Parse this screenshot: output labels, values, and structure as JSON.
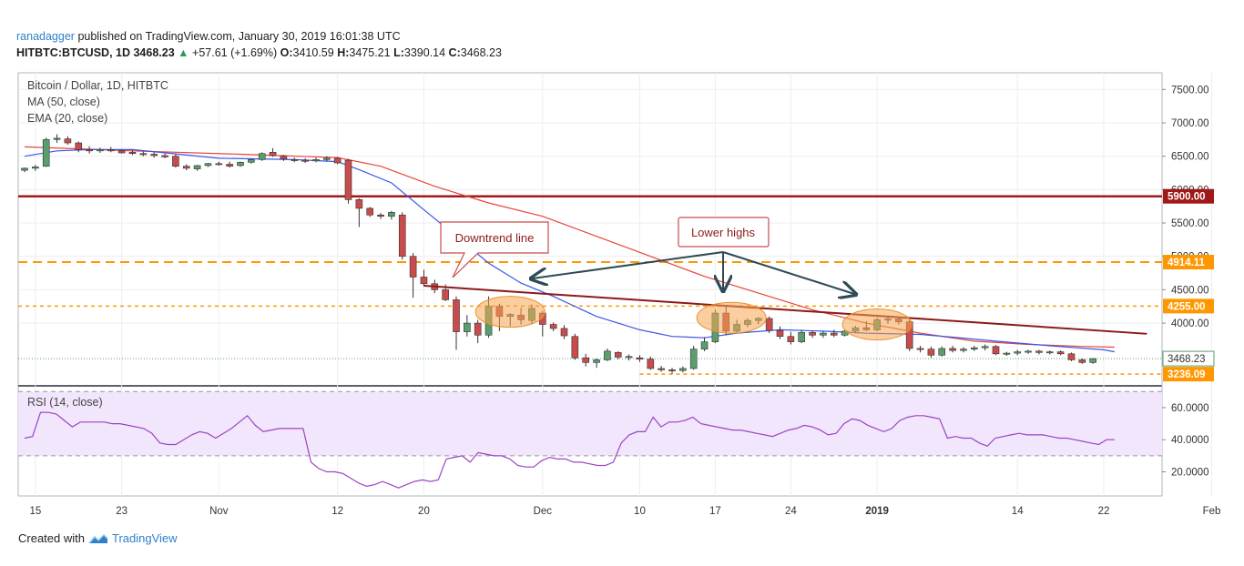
{
  "header": {
    "user": "ranadagger",
    "published": "published on TradingView.com, January 30, 2019 16:01:38 UTC",
    "symbol": "HITBTC:BTCUSD, 1D",
    "last": "3468.23",
    "arrow": "▲",
    "change": "+57.61 (+1.69%)",
    "o_label": "O:",
    "o": "3410.59",
    "h_label": "H:",
    "h": "3475.21",
    "l_label": "L:",
    "l": "3390.14",
    "c_label": "C:",
    "c": "3468.23"
  },
  "legend": {
    "title": "Bitcoin / Dollar, 1D, HITBTC",
    "ma": "MA (50, close)",
    "ema": "EMA (20, close)",
    "rsi": "RSI (14, close)"
  },
  "annotations": {
    "downtrend": "Downtrend line",
    "lower_highs": "Lower highs"
  },
  "footer": {
    "created": "Created with",
    "brand": "TradingView"
  },
  "colors": {
    "up": "#5a9e6f",
    "down": "#c94c4c",
    "ma": "#e8453c",
    "ema": "#3a57e8",
    "resistance": "#a01818",
    "support": "#ff9800",
    "trend": "#8b1a1a",
    "rsi": "#9b45c4",
    "rsi_band": "#f1e6fb",
    "arrow": "#2e4a56"
  },
  "chart_data": [
    {
      "type": "candlestick",
      "title": "Bitcoin / Dollar, 1D, HITBTC",
      "ylim": [
        3074,
        7750
      ],
      "y_ticks": [
        "7500.00",
        "7000.00",
        "6500.00",
        "6000.00",
        "5500.00",
        "5000.00",
        "4500.00",
        "4000.00"
      ],
      "x_tick_labels": [
        {
          "label": "15",
          "i": 1
        },
        {
          "label": "23",
          "i": 9
        },
        {
          "label": "Nov",
          "i": 18
        },
        {
          "label": "12",
          "i": 29
        },
        {
          "label": "20",
          "i": 37
        },
        {
          "label": "Dec",
          "i": 48
        },
        {
          "label": "10",
          "i": 57
        },
        {
          "label": "17",
          "i": 64
        },
        {
          "label": "24",
          "i": 71
        },
        {
          "label": "2019",
          "i": 79
        },
        {
          "label": "14",
          "i": 92
        },
        {
          "label": "22",
          "i": 100
        },
        {
          "label": "Feb",
          "i": 110
        }
      ],
      "ohlc": [
        [
          6290,
          6330,
          6260,
          6320
        ],
        [
          6320,
          6370,
          6280,
          6340
        ],
        [
          6350,
          6780,
          6340,
          6750
        ],
        [
          6750,
          6830,
          6700,
          6770
        ],
        [
          6760,
          6800,
          6670,
          6700
        ],
        [
          6700,
          6720,
          6560,
          6600
        ],
        [
          6600,
          6650,
          6540,
          6580
        ],
        [
          6580,
          6630,
          6550,
          6600
        ],
        [
          6600,
          6640,
          6560,
          6580
        ],
        [
          6580,
          6600,
          6540,
          6550
        ],
        [
          6560,
          6590,
          6520,
          6540
        ],
        [
          6540,
          6570,
          6500,
          6530
        ],
        [
          6530,
          6560,
          6480,
          6510
        ],
        [
          6510,
          6540,
          6470,
          6490
        ],
        [
          6500,
          6530,
          6330,
          6350
        ],
        [
          6350,
          6380,
          6290,
          6320
        ],
        [
          6310,
          6370,
          6280,
          6360
        ],
        [
          6360,
          6400,
          6340,
          6390
        ],
        [
          6390,
          6420,
          6360,
          6380
        ],
        [
          6380,
          6420,
          6330,
          6350
        ],
        [
          6360,
          6420,
          6340,
          6410
        ],
        [
          6410,
          6470,
          6390,
          6450
        ],
        [
          6450,
          6560,
          6430,
          6540
        ],
        [
          6560,
          6620,
          6490,
          6510
        ],
        [
          6500,
          6520,
          6430,
          6460
        ],
        [
          6450,
          6480,
          6410,
          6440
        ],
        [
          6440,
          6470,
          6400,
          6430
        ],
        [
          6430,
          6480,
          6410,
          6450
        ],
        [
          6450,
          6500,
          6420,
          6470
        ],
        [
          6470,
          6490,
          6380,
          6400
        ],
        [
          6440,
          6460,
          5790,
          5850
        ],
        [
          5850,
          5870,
          5440,
          5720
        ],
        [
          5720,
          5740,
          5590,
          5620
        ],
        [
          5620,
          5650,
          5560,
          5600
        ],
        [
          5600,
          5680,
          5550,
          5660
        ],
        [
          5620,
          5660,
          4950,
          5000
        ],
        [
          5000,
          5050,
          4380,
          4690
        ],
        [
          4690,
          4800,
          4550,
          4590
        ],
        [
          4590,
          4650,
          4450,
          4500
        ],
        [
          4500,
          4580,
          4330,
          4350
        ],
        [
          4350,
          4400,
          3600,
          3870
        ],
        [
          3870,
          4120,
          3800,
          4000
        ],
        [
          4000,
          4050,
          3700,
          3820
        ],
        [
          3820,
          4400,
          3780,
          4250
        ],
        [
          4250,
          4290,
          3880,
          4100
        ],
        [
          4100,
          4150,
          3950,
          4130
        ],
        [
          4120,
          4230,
          3980,
          4050
        ],
        [
          4040,
          4280,
          3980,
          4220
        ],
        [
          4150,
          4180,
          3800,
          3980
        ],
        [
          3980,
          4010,
          3880,
          3920
        ],
        [
          3920,
          3970,
          3760,
          3810
        ],
        [
          3800,
          3840,
          3450,
          3480
        ],
        [
          3480,
          3540,
          3350,
          3410
        ],
        [
          3410,
          3470,
          3330,
          3450
        ],
        [
          3450,
          3620,
          3430,
          3580
        ],
        [
          3560,
          3580,
          3460,
          3490
        ],
        [
          3490,
          3530,
          3440,
          3500
        ],
        [
          3480,
          3520,
          3420,
          3460
        ],
        [
          3460,
          3500,
          3300,
          3320
        ],
        [
          3320,
          3360,
          3270,
          3300
        ],
        [
          3300,
          3330,
          3240,
          3290
        ],
        [
          3290,
          3350,
          3260,
          3320
        ],
        [
          3320,
          3660,
          3300,
          3610
        ],
        [
          3610,
          3790,
          3580,
          3720
        ],
        [
          3720,
          4200,
          3700,
          4150
        ],
        [
          4150,
          4260,
          3820,
          3880
        ],
        [
          3880,
          4050,
          3850,
          3980
        ],
        [
          3980,
          4070,
          3940,
          4040
        ],
        [
          4040,
          4090,
          3980,
          4070
        ],
        [
          4070,
          4100,
          3850,
          3890
        ],
        [
          3890,
          3950,
          3760,
          3800
        ],
        [
          3800,
          3870,
          3680,
          3720
        ],
        [
          3720,
          3900,
          3700,
          3860
        ],
        [
          3860,
          3890,
          3780,
          3820
        ],
        [
          3820,
          3880,
          3780,
          3850
        ],
        [
          3850,
          3900,
          3790,
          3820
        ],
        [
          3820,
          3900,
          3800,
          3880
        ],
        [
          3880,
          3960,
          3850,
          3930
        ],
        [
          3930,
          4030,
          3880,
          3900
        ],
        [
          3900,
          4080,
          3880,
          4050
        ],
        [
          4050,
          4100,
          3990,
          4060
        ],
        [
          4060,
          4090,
          3980,
          4020
        ],
        [
          4020,
          4050,
          3580,
          3620
        ],
        [
          3620,
          3660,
          3560,
          3610
        ],
        [
          3610,
          3650,
          3480,
          3520
        ],
        [
          3520,
          3650,
          3500,
          3620
        ],
        [
          3620,
          3660,
          3560,
          3590
        ],
        [
          3590,
          3640,
          3560,
          3610
        ],
        [
          3610,
          3660,
          3580,
          3630
        ],
        [
          3630,
          3680,
          3590,
          3650
        ],
        [
          3650,
          3670,
          3520,
          3540
        ],
        [
          3540,
          3570,
          3510,
          3550
        ],
        [
          3550,
          3600,
          3520,
          3570
        ],
        [
          3570,
          3600,
          3540,
          3580
        ],
        [
          3580,
          3600,
          3530,
          3560
        ],
        [
          3560,
          3590,
          3530,
          3570
        ],
        [
          3570,
          3590,
          3520,
          3540
        ],
        [
          3540,
          3560,
          3430,
          3450
        ],
        [
          3450,
          3470,
          3390,
          3410
        ],
        [
          3410,
          3475,
          3390,
          3468
        ]
      ],
      "ma50_close": [
        [
          0,
          6640
        ],
        [
          10,
          6580
        ],
        [
          20,
          6530
        ],
        [
          29,
          6480
        ],
        [
          33,
          6350
        ],
        [
          38,
          6050
        ],
        [
          43,
          5800
        ],
        [
          48,
          5600
        ],
        [
          53,
          5300
        ],
        [
          58,
          5000
        ],
        [
          63,
          4700
        ],
        [
          68,
          4450
        ],
        [
          73,
          4200
        ],
        [
          78,
          4000
        ],
        [
          83,
          3850
        ],
        [
          88,
          3730
        ],
        [
          93,
          3680
        ],
        [
          98,
          3650
        ],
        [
          101,
          3640
        ]
      ],
      "ema20_close": [
        [
          0,
          6500
        ],
        [
          3,
          6580
        ],
        [
          6,
          6600
        ],
        [
          10,
          6600
        ],
        [
          18,
          6470
        ],
        [
          25,
          6450
        ],
        [
          29,
          6420
        ],
        [
          31,
          6300
        ],
        [
          34,
          6100
        ],
        [
          37,
          5700
        ],
        [
          40,
          5300
        ],
        [
          43,
          4900
        ],
        [
          46,
          4600
        ],
        [
          49,
          4400
        ],
        [
          53,
          4100
        ],
        [
          57,
          3900
        ],
        [
          60,
          3800
        ],
        [
          63,
          3780
        ],
        [
          66,
          3850
        ],
        [
          70,
          3900
        ],
        [
          74,
          3880
        ],
        [
          78,
          3850
        ],
        [
          83,
          3830
        ],
        [
          86,
          3790
        ],
        [
          90,
          3730
        ],
        [
          95,
          3660
        ],
        [
          100,
          3600
        ],
        [
          101,
          3570
        ]
      ],
      "levels": [
        {
          "value": 5900,
          "label": "5900.00"
        },
        {
          "value": 4914.11,
          "label": "4914.11"
        },
        {
          "value": 4255,
          "label": "4255.00"
        },
        {
          "value": 3236.09,
          "label": "3236.09"
        }
      ],
      "last_price": {
        "value": 3468.23,
        "label": "3468.23"
      },
      "downtrend_line": [
        [
          37,
          4560
        ],
        [
          104,
          3840
        ]
      ]
    },
    {
      "type": "line",
      "title": "RSI (14, close)",
      "ylim": [
        5,
        73
      ],
      "y_ticks": [
        "60.0000",
        "40.0000",
        "20.0000"
      ],
      "bands": [
        30,
        70
      ],
      "values": [
        41,
        42,
        57,
        57,
        56,
        52,
        48,
        51,
        51,
        51,
        51,
        50,
        50,
        49,
        48,
        47,
        44,
        38,
        37,
        37,
        40,
        43,
        45,
        44,
        41,
        44,
        47,
        51,
        55,
        49,
        45,
        46,
        47,
        47,
        47,
        47,
        26,
        22,
        20,
        20,
        19,
        16,
        13,
        11,
        12,
        14,
        12,
        10,
        12,
        14,
        15,
        14,
        15,
        28,
        29,
        30,
        26,
        32,
        31,
        30,
        30,
        28,
        24,
        23,
        23,
        27,
        29,
        28,
        28,
        26,
        26,
        25,
        24,
        24,
        26,
        38,
        43,
        45,
        45,
        54,
        48,
        51,
        51,
        52,
        54,
        50,
        49,
        48,
        47,
        46,
        46,
        45,
        44,
        43,
        42,
        44,
        46,
        47,
        49,
        48,
        46,
        43,
        44,
        50,
        53,
        52,
        49,
        47,
        45,
        47,
        52,
        54,
        55,
        55,
        54,
        53,
        41,
        42,
        41,
        41,
        38,
        36,
        41,
        42,
        43,
        44,
        43,
        43,
        43,
        42,
        41,
        41,
        40,
        39,
        38,
        37,
        40,
        40
      ]
    }
  ]
}
